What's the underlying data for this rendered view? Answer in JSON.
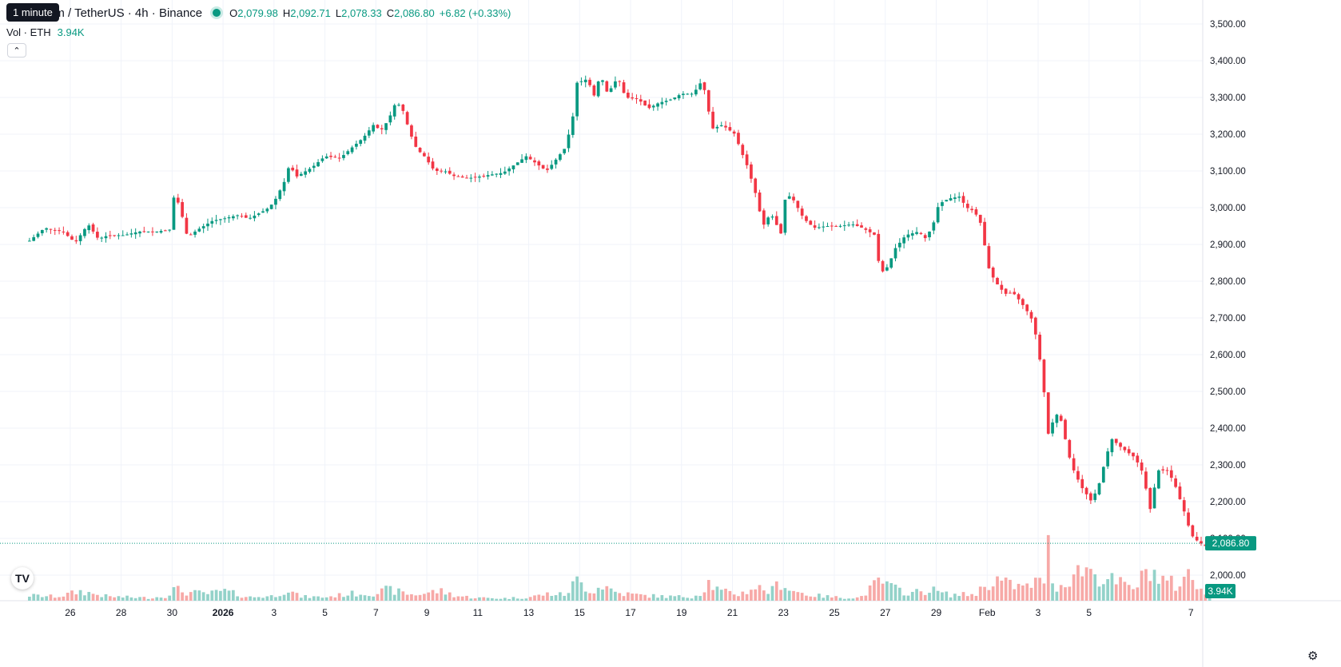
{
  "header": {
    "tooltip": "1 minute",
    "title": "um / TetherUS · 4h · Binance",
    "o_label": "O",
    "o_value": "2,079.98",
    "h_label": "H",
    "h_value": "2,092.71",
    "l_label": "L",
    "l_value": "2,078.33",
    "c_label": "C",
    "c_value": "2,086.80",
    "change": "+6.82 (+0.33%)",
    "vol_label": "Vol · ETH",
    "vol_value": "3.94K",
    "collapse_icon": "chevron-up-icon"
  },
  "colors": {
    "up": "#089981",
    "down": "#f23645",
    "up_vol": "#93d2c9",
    "down_vol": "#f7a9a7"
  },
  "chart_data": {
    "type": "candlestick",
    "y_axis": {
      "ticks": [
        2000,
        2100,
        2200,
        2300,
        2400,
        2500,
        2600,
        2700,
        2800,
        2900,
        3000,
        3100,
        3200,
        3300,
        3400,
        3500
      ],
      "tick_labels": [
        "2,000.00",
        "2,100.00",
        "2,200.00",
        "2,300.00",
        "2,400.00",
        "2,500.00",
        "2,600.00",
        "2,700.00",
        "2,800.00",
        "2,900.00",
        "3,000.00",
        "3,100.00",
        "3,200.00",
        "3,300.00",
        "3,400.00",
        "3,500.00"
      ],
      "range": [
        1990,
        3520
      ]
    },
    "x_axis": {
      "labels": [
        "26",
        "28",
        "30",
        "2026",
        "3",
        "5",
        "7",
        "9",
        "11",
        "13",
        "15",
        "17",
        "19",
        "21",
        "23",
        "25",
        "27",
        "29",
        "Feb",
        "3",
        "5",
        "7"
      ],
      "bold": [
        "2026"
      ],
      "range_days": [
        -7.6,
        39.7
      ]
    },
    "last_price": 2086.8,
    "last_price_label": "2,086.80",
    "last_volume_label": "3.94K",
    "close_path": [
      [
        -7.6,
        2910
      ],
      [
        -7.0,
        2945
      ],
      [
        -6.3,
        2935
      ],
      [
        -5.8,
        2905
      ],
      [
        -5.3,
        2955
      ],
      [
        -4.9,
        2915
      ],
      [
        -4.5,
        2925
      ],
      [
        -3.9,
        2925
      ],
      [
        -3.3,
        2935
      ],
      [
        -2.6,
        2935
      ],
      [
        -2.1,
        2940
      ],
      [
        -1.9,
        3045
      ],
      [
        -1.6,
        2975
      ],
      [
        -1.4,
        2920
      ],
      [
        -1.0,
        2940
      ],
      [
        -0.4,
        2965
      ],
      [
        0.0,
        2970
      ],
      [
        0.6,
        2980
      ],
      [
        1.0,
        2970
      ],
      [
        1.7,
        2995
      ],
      [
        2.0,
        3015
      ],
      [
        2.4,
        3070
      ],
      [
        2.6,
        3115
      ],
      [
        2.9,
        3085
      ],
      [
        3.5,
        3110
      ],
      [
        4.0,
        3140
      ],
      [
        4.6,
        3135
      ],
      [
        5.0,
        3160
      ],
      [
        5.5,
        3190
      ],
      [
        5.9,
        3225
      ],
      [
        6.2,
        3210
      ],
      [
        6.5,
        3240
      ],
      [
        6.8,
        3290
      ],
      [
        7.1,
        3260
      ],
      [
        7.3,
        3210
      ],
      [
        7.6,
        3160
      ],
      [
        7.9,
        3140
      ],
      [
        8.3,
        3100
      ],
      [
        8.7,
        3100
      ],
      [
        9.1,
        3085
      ],
      [
        9.6,
        3080
      ],
      [
        10.1,
        3085
      ],
      [
        10.5,
        3090
      ],
      [
        11.0,
        3095
      ],
      [
        11.4,
        3115
      ],
      [
        11.9,
        3140
      ],
      [
        12.3,
        3120
      ],
      [
        12.7,
        3100
      ],
      [
        13.0,
        3125
      ],
      [
        13.4,
        3160
      ],
      [
        13.7,
        3230
      ],
      [
        13.9,
        3340
      ],
      [
        14.3,
        3350
      ],
      [
        14.6,
        3300
      ],
      [
        14.8,
        3365
      ],
      [
        15.1,
        3310
      ],
      [
        15.5,
        3355
      ],
      [
        15.8,
        3300
      ],
      [
        16.3,
        3295
      ],
      [
        16.7,
        3270
      ],
      [
        17.1,
        3285
      ],
      [
        17.6,
        3295
      ],
      [
        18.0,
        3310
      ],
      [
        18.4,
        3310
      ],
      [
        18.7,
        3330
      ],
      [
        18.8,
        3355
      ],
      [
        19.0,
        3285
      ],
      [
        19.2,
        3215
      ],
      [
        19.6,
        3225
      ],
      [
        20.1,
        3200
      ],
      [
        20.3,
        3160
      ],
      [
        20.6,
        3110
      ],
      [
        20.9,
        3040
      ],
      [
        21.2,
        2950
      ],
      [
        21.5,
        2985
      ],
      [
        21.9,
        2930
      ],
      [
        22.1,
        3040
      ],
      [
        22.4,
        3020
      ],
      [
        22.8,
        2970
      ],
      [
        23.2,
        2945
      ],
      [
        23.7,
        2950
      ],
      [
        24.2,
        2950
      ],
      [
        24.7,
        2955
      ],
      [
        25.1,
        2945
      ],
      [
        25.6,
        2925
      ],
      [
        25.8,
        2820
      ],
      [
        26.1,
        2840
      ],
      [
        26.4,
        2890
      ],
      [
        26.8,
        2925
      ],
      [
        27.3,
        2935
      ],
      [
        27.6,
        2915
      ],
      [
        27.9,
        2960
      ],
      [
        28.1,
        3010
      ],
      [
        28.5,
        3025
      ],
      [
        28.9,
        3030
      ],
      [
        29.2,
        3000
      ],
      [
        29.5,
        2990
      ],
      [
        29.8,
        2950
      ],
      [
        30.0,
        2845
      ],
      [
        30.3,
        2800
      ],
      [
        30.7,
        2765
      ],
      [
        31.0,
        2770
      ],
      [
        31.3,
        2745
      ],
      [
        31.6,
        2715
      ],
      [
        31.8,
        2690
      ],
      [
        32.0,
        2620
      ],
      [
        32.2,
        2520
      ],
      [
        32.4,
        2385
      ],
      [
        32.7,
        2440
      ],
      [
        32.9,
        2420
      ],
      [
        33.3,
        2300
      ],
      [
        33.7,
        2240
      ],
      [
        33.9,
        2220
      ],
      [
        34.1,
        2200
      ],
      [
        34.4,
        2250
      ],
      [
        34.7,
        2330
      ],
      [
        34.9,
        2370
      ],
      [
        35.3,
        2345
      ],
      [
        35.8,
        2320
      ],
      [
        36.1,
        2280
      ],
      [
        36.4,
        2180
      ],
      [
        36.7,
        2285
      ],
      [
        37.1,
        2285
      ],
      [
        37.4,
        2240
      ],
      [
        37.8,
        2160
      ],
      [
        38.0,
        2110
      ],
      [
        38.3,
        2090
      ],
      [
        38.6,
        2078
      ],
      [
        38.8,
        2087
      ]
    ],
    "volume_path": [
      [
        -7.6,
        0.9
      ],
      [
        -6.5,
        0.7
      ],
      [
        -5.6,
        1.6
      ],
      [
        -4.5,
        0.7
      ],
      [
        -3.0,
        0.5
      ],
      [
        -2.3,
        0.7
      ],
      [
        -1.9,
        2.0
      ],
      [
        -1.4,
        1.4
      ],
      [
        -0.5,
        1.2
      ],
      [
        0.0,
        1.7
      ],
      [
        1.0,
        0.6
      ],
      [
        2.0,
        0.8
      ],
      [
        2.5,
        2.0
      ],
      [
        3.0,
        0.7
      ],
      [
        4.0,
        0.6
      ],
      [
        5.0,
        1.2
      ],
      [
        6.0,
        1.3
      ],
      [
        6.5,
        1.9
      ],
      [
        7.0,
        1.4
      ],
      [
        7.5,
        1.0
      ],
      [
        8.5,
        1.7
      ],
      [
        9.2,
        0.8
      ],
      [
        10.0,
        0.5
      ],
      [
        11.0,
        0.4
      ],
      [
        12.0,
        0.6
      ],
      [
        12.8,
        1.2
      ],
      [
        13.4,
        1.0
      ],
      [
        13.9,
        3.4
      ],
      [
        14.5,
        1.6
      ],
      [
        14.9,
        2.7
      ],
      [
        15.5,
        1.3
      ],
      [
        16.5,
        0.9
      ],
      [
        17.5,
        0.7
      ],
      [
        18.4,
        0.7
      ],
      [
        18.8,
        1.3
      ],
      [
        19.0,
        3.4
      ],
      [
        19.5,
        1.6
      ],
      [
        20.3,
        1.1
      ],
      [
        20.9,
        2.4
      ],
      [
        21.5,
        1.5
      ],
      [
        21.9,
        3.3
      ],
      [
        22.3,
        1.8
      ],
      [
        23.0,
        1.0
      ],
      [
        24.0,
        0.6
      ],
      [
        25.0,
        0.5
      ],
      [
        25.8,
        3.4
      ],
      [
        26.3,
        2.1
      ],
      [
        27.0,
        1.3
      ],
      [
        27.8,
        1.9
      ],
      [
        28.5,
        1.0
      ],
      [
        29.5,
        1.1
      ],
      [
        30.3,
        3.8
      ],
      [
        30.8,
        2.8
      ],
      [
        31.5,
        2.2
      ],
      [
        31.9,
        3.2
      ],
      [
        32.2,
        2.9
      ],
      [
        32.4,
        8.7
      ],
      [
        32.7,
        1.8
      ],
      [
        33.2,
        3.9
      ],
      [
        33.7,
        5.3
      ],
      [
        33.9,
        5.9
      ],
      [
        34.3,
        4.2
      ],
      [
        34.7,
        3.7
      ],
      [
        35.2,
        3.0
      ],
      [
        35.7,
        2.0
      ],
      [
        36.1,
        3.9
      ],
      [
        36.4,
        6.0
      ],
      [
        36.7,
        3.7
      ],
      [
        37.1,
        3.3
      ],
      [
        37.5,
        2.4
      ],
      [
        37.8,
        5.0
      ],
      [
        38.2,
        2.5
      ],
      [
        38.5,
        2.2
      ],
      [
        38.8,
        0.5
      ]
    ],
    "volume_max": 14
  }
}
